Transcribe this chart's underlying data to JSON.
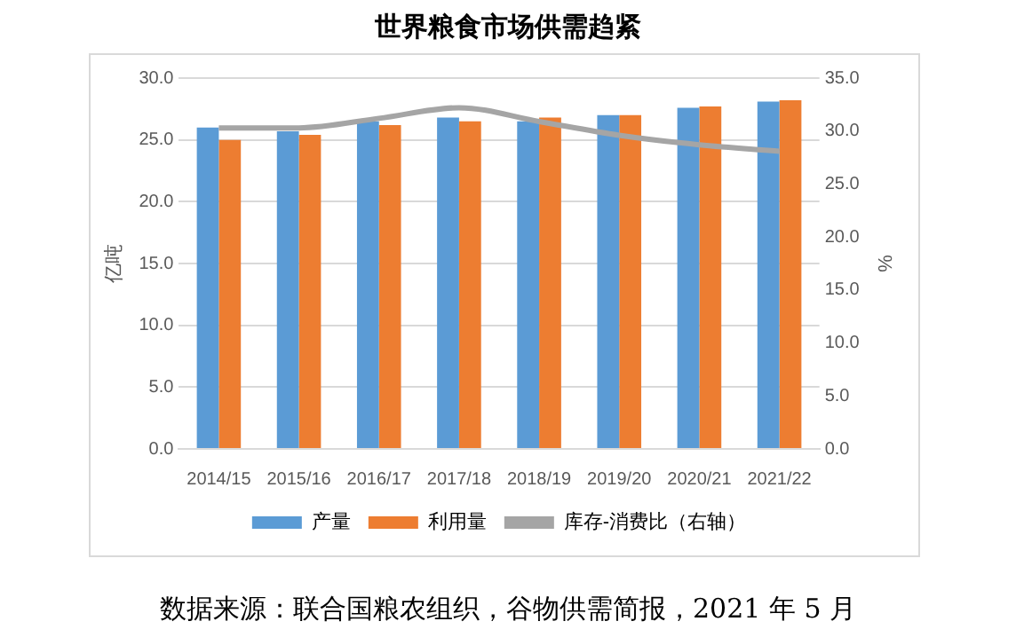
{
  "chart_data": {
    "type": "bar",
    "title": "世界粮食市场供需趋紧",
    "ylabel": "亿吨",
    "y2label": "%",
    "categories": [
      "2014/15",
      "2015/16",
      "2016/17",
      "2017/18",
      "2018/19",
      "2019/20",
      "2020/21",
      "2021/22"
    ],
    "series": [
      {
        "name": "产量",
        "color": "#5b9bd5",
        "values": [
          26.0,
          25.7,
          26.5,
          26.8,
          26.5,
          27.0,
          27.6,
          28.1
        ]
      },
      {
        "name": "利用量",
        "color": "#ed7d31",
        "values": [
          25.0,
          25.4,
          26.2,
          26.5,
          26.8,
          27.0,
          27.7,
          28.2
        ]
      },
      {
        "name": "库存-消费比（右轴）",
        "type": "line",
        "axis": "y2",
        "color": "#a5a5a5",
        "values": [
          30.3,
          30.3,
          31.2,
          32.2,
          30.9,
          29.6,
          28.7,
          28.1
        ]
      }
    ],
    "ylim": [
      0,
      30
    ],
    "yticks": [
      {
        "value": 0,
        "label": "0.0"
      },
      {
        "value": 5,
        "label": "5.0"
      },
      {
        "value": 10,
        "label": "10.0"
      },
      {
        "value": 15,
        "label": "15.0"
      },
      {
        "value": 20,
        "label": "20.0"
      },
      {
        "value": 25,
        "label": "25.0"
      },
      {
        "value": 30,
        "label": "30.0"
      }
    ],
    "y2lim": [
      0,
      35
    ],
    "y2ticks": [
      {
        "value": 0,
        "label": "0.0"
      },
      {
        "value": 5,
        "label": "5.0"
      },
      {
        "value": 10,
        "label": "10.0"
      },
      {
        "value": 15,
        "label": "15.0"
      },
      {
        "value": 20,
        "label": "20.0"
      },
      {
        "value": 25,
        "label": "25.0"
      },
      {
        "value": 30,
        "label": "30.0"
      },
      {
        "value": 35,
        "label": "35.0"
      }
    ],
    "grid": "y",
    "legend": "bottom",
    "marker": "none",
    "line_style": "solid",
    "annotations": [
      "数据来源：联合国粮农组织，谷物供需简报，2021 年 5 月"
    ]
  }
}
